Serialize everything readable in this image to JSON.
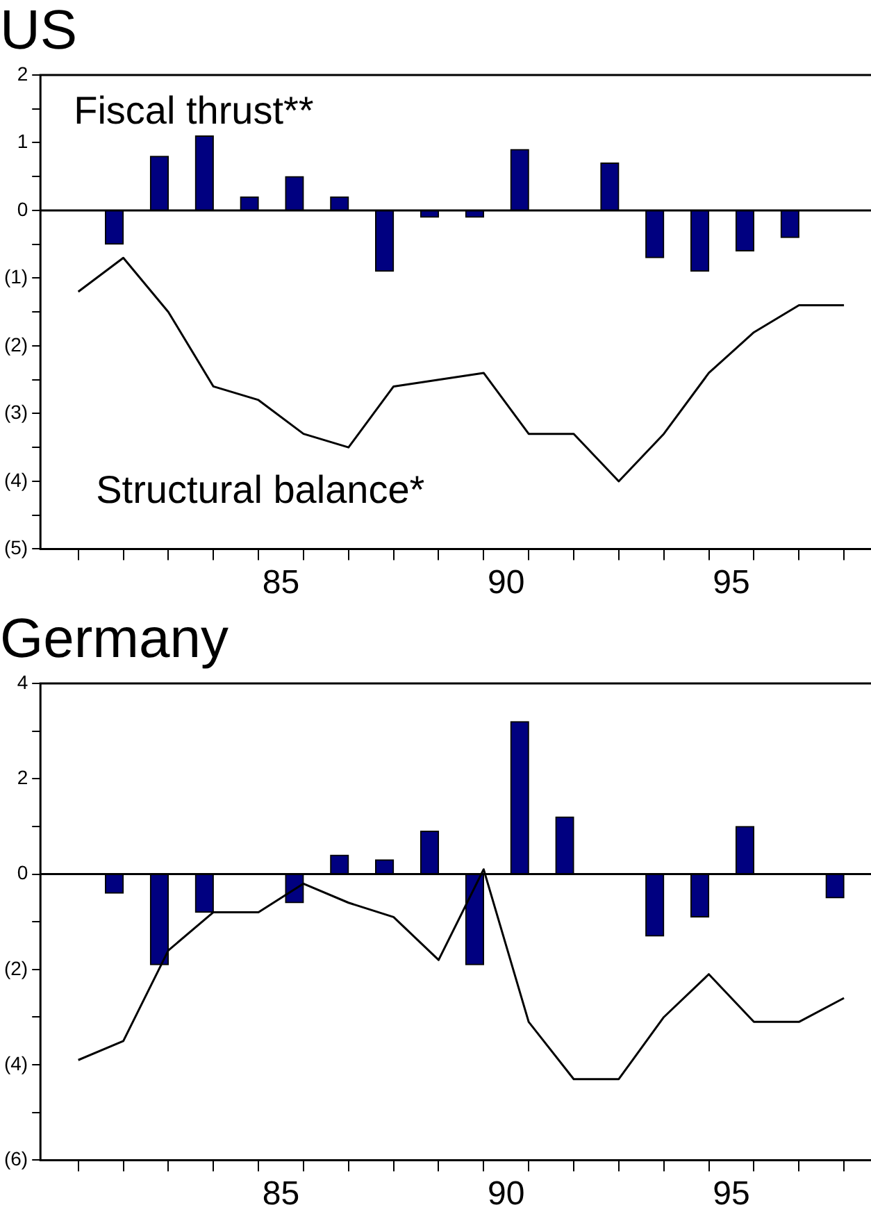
{
  "chart_data": [
    {
      "type": "bar",
      "title": "US",
      "xlim": [
        79.66,
        98.1
      ],
      "ylim": [
        -5,
        2
      ],
      "marker": "none",
      "xticks": [
        {
          "value": 80.5,
          "label": null
        },
        {
          "value": 81.5,
          "label": null
        },
        {
          "value": 82.5,
          "label": null
        },
        {
          "value": 83.5,
          "label": null
        },
        {
          "value": 84.5,
          "label": null
        },
        85,
        {
          "value": 85.5,
          "label": null
        },
        {
          "value": 86.5,
          "label": null
        },
        {
          "value": 87.5,
          "label": null
        },
        {
          "value": 88.5,
          "label": null
        },
        {
          "value": 89.5,
          "label": null
        },
        90,
        {
          "value": 90.5,
          "label": null
        },
        {
          "value": 91.5,
          "label": null
        },
        {
          "value": 92.5,
          "label": null
        },
        {
          "value": 93.5,
          "label": null
        },
        {
          "value": 94.5,
          "label": null
        },
        95,
        {
          "value": 95.5,
          "label": null
        },
        {
          "value": 96.5,
          "label": null
        },
        {
          "value": 97.5,
          "label": null
        }
      ],
      "yticks": [
        {
          "value": -5,
          "label": "(5)"
        },
        {
          "value": -4.5,
          "label": null
        },
        {
          "value": -4,
          "label": "(4)"
        },
        {
          "value": -3.5,
          "label": null
        },
        {
          "value": -3,
          "label": "(3)"
        },
        {
          "value": -2.5,
          "label": null
        },
        {
          "value": -2,
          "label": "(2)"
        },
        {
          "value": -1.5,
          "label": null
        },
        {
          "value": -1,
          "label": "(1)"
        },
        {
          "value": -0.5,
          "label": null
        },
        0,
        {
          "value": 0.5,
          "label": null
        },
        1,
        {
          "value": 1.5,
          "label": null
        },
        2
      ],
      "ref_lines": [
        {
          "axis": "y",
          "value": 0
        }
      ],
      "series": [
        {
          "name": "Fiscal thrust**",
          "color": "#000080",
          "x": [
            81.3,
            82.3,
            83.3,
            84.3,
            85.3,
            86.3,
            87.3,
            88.3,
            89.3,
            90.3,
            91.3,
            92.3,
            93.3,
            94.3,
            95.3,
            96.3
          ],
          "values": [
            -0.5,
            0.8,
            1.1,
            0.2,
            0.5,
            0.2,
            -0.9,
            -0.1,
            -0.1,
            0.9,
            null,
            0.7,
            -0.7,
            -0.9,
            -0.6,
            -0.4
          ]
        },
        {
          "name": "Structural balance*",
          "type": "line",
          "color": "#000000",
          "x": [
            80.5,
            81.5,
            82.5,
            83.5,
            84.5,
            85.5,
            86.5,
            87.5,
            88.5,
            89.5,
            90.5,
            91.5,
            92.5,
            93.5,
            94.5,
            95.5,
            96.5,
            97.5
          ],
          "values": [
            -1.2,
            -0.7,
            -1.5,
            -2.6,
            -2.8,
            -3.3,
            -3.5,
            -2.6,
            -2.5,
            -2.4,
            -3.3,
            -3.3,
            -4.0,
            -3.3,
            -2.4,
            -1.8,
            -1.4,
            -1.4
          ]
        }
      ]
    },
    {
      "type": "bar",
      "title": "Germany",
      "xlim": [
        79.66,
        98.1
      ],
      "ylim": [
        -6,
        4
      ],
      "marker": "none",
      "xticks": [
        {
          "value": 80.5,
          "label": null
        },
        {
          "value": 81.5,
          "label": null
        },
        {
          "value": 82.5,
          "label": null
        },
        {
          "value": 83.5,
          "label": null
        },
        {
          "value": 84.5,
          "label": null
        },
        85,
        {
          "value": 85.5,
          "label": null
        },
        {
          "value": 86.5,
          "label": null
        },
        {
          "value": 87.5,
          "label": null
        },
        {
          "value": 88.5,
          "label": null
        },
        {
          "value": 89.5,
          "label": null
        },
        90,
        {
          "value": 90.5,
          "label": null
        },
        {
          "value": 91.5,
          "label": null
        },
        {
          "value": 92.5,
          "label": null
        },
        {
          "value": 93.5,
          "label": null
        },
        {
          "value": 94.5,
          "label": null
        },
        95,
        {
          "value": 95.5,
          "label": null
        },
        {
          "value": 96.5,
          "label": null
        },
        {
          "value": 97.5,
          "label": null
        }
      ],
      "yticks": [
        {
          "value": -6,
          "label": "(6)"
        },
        {
          "value": -5,
          "label": null
        },
        {
          "value": -4,
          "label": "(4)"
        },
        {
          "value": -3,
          "label": null
        },
        {
          "value": -2,
          "label": "(2)"
        },
        {
          "value": -1,
          "label": null
        },
        0,
        {
          "value": 1,
          "label": null
        },
        2,
        {
          "value": 3,
          "label": null
        },
        4
      ],
      "ref_lines": [
        {
          "axis": "y",
          "value": 0
        }
      ],
      "series": [
        {
          "color": "#000080",
          "x": [
            81.3,
            82.3,
            83.3,
            84.3,
            85.3,
            86.3,
            87.3,
            88.3,
            89.3,
            90.3,
            91.3,
            92.3,
            93.3,
            94.3,
            95.3,
            96.3,
            97.3
          ],
          "values": [
            -0.4,
            -1.9,
            -0.8,
            null,
            -0.6,
            0.4,
            0.3,
            0.9,
            -1.9,
            3.2,
            1.2,
            null,
            -1.3,
            -0.9,
            1.0,
            null,
            -0.5
          ]
        },
        {
          "type": "line",
          "color": "#000000",
          "x": [
            80.5,
            81.5,
            82.5,
            83.5,
            84.5,
            85.5,
            86.5,
            87.5,
            88.5,
            89.5,
            90.5,
            91.5,
            92.5,
            93.5,
            94.5,
            95.5,
            96.5,
            97.5
          ],
          "values": [
            -3.9,
            -3.5,
            -1.6,
            -0.8,
            -0.8,
            -0.2,
            -0.6,
            -0.9,
            -1.8,
            0.1,
            -3.1,
            -4.3,
            -4.3,
            -3.0,
            -2.1,
            -3.1,
            -3.1,
            -2.6
          ]
        }
      ]
    }
  ]
}
